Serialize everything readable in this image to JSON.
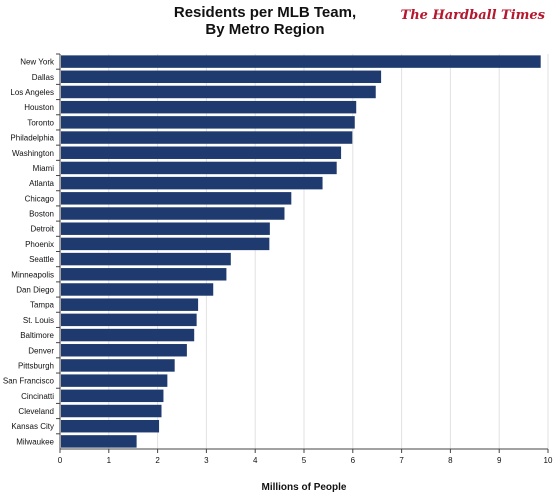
{
  "title_line1": "Residents per MLB Team,",
  "title_line2": "By Metro Region",
  "brand": "The Hardball Times",
  "chart_data": {
    "type": "bar",
    "orientation": "horizontal",
    "title": "Residents per MLB Team, By Metro Region",
    "xlabel": "Millions of People",
    "ylabel": "",
    "xlim": [
      0,
      10
    ],
    "xticks": [
      0,
      1,
      2,
      3,
      4,
      5,
      6,
      7,
      8,
      9,
      10
    ],
    "grid": true,
    "bar_color": "#1f3a6e",
    "categories": [
      "New York",
      "Dallas",
      "Los Angeles",
      "Houston",
      "Toronto",
      "Philadelphia",
      "Washington",
      "Miami",
      "Atlanta",
      "Chicago",
      "Boston",
      "Detroit",
      "Phoenix",
      "Seattle",
      "Minneapolis",
      "Dan Diego",
      "Tampa",
      "St. Louis",
      "Baltimore",
      "Denver",
      "Pittsburgh",
      "San Francisco",
      "Cincinatti",
      "Cleveland",
      "Kansas City",
      "Milwaukee"
    ],
    "values": [
      9.85,
      6.58,
      6.47,
      6.07,
      6.04,
      5.99,
      5.76,
      5.67,
      5.38,
      4.74,
      4.6,
      4.3,
      4.29,
      3.5,
      3.41,
      3.14,
      2.83,
      2.8,
      2.75,
      2.6,
      2.35,
      2.2,
      2.12,
      2.08,
      2.03,
      1.57
    ]
  }
}
